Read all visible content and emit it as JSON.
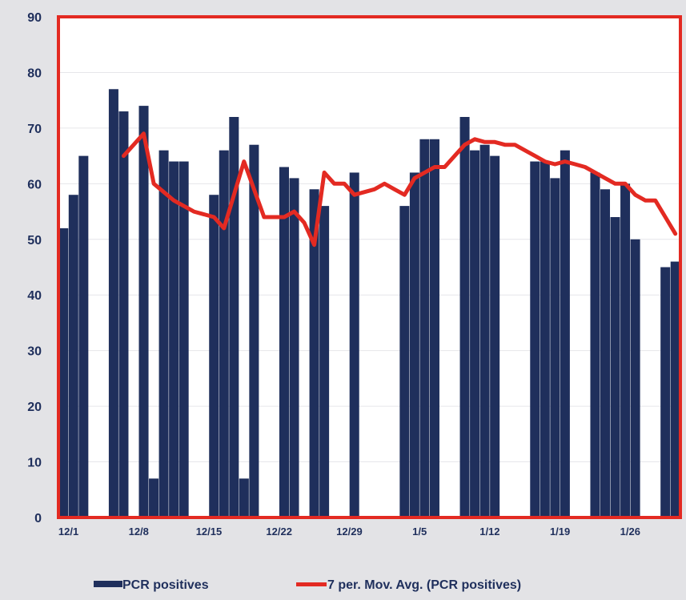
{
  "chart_data": {
    "type": "bar",
    "title": "",
    "xlabel": "",
    "ylabel": "",
    "ylim": [
      0,
      90
    ],
    "yticks": [
      0,
      10,
      20,
      30,
      40,
      50,
      60,
      70,
      80,
      90
    ],
    "grid": true,
    "legend_position": "bottom",
    "x_start": "12/1",
    "x_end": "1/31",
    "xticks": [
      "12/1",
      "12/8",
      "12/15",
      "12/22",
      "12/29",
      "1/5",
      "1/12",
      "1/19",
      "1/26"
    ],
    "bars": {
      "name": "PCR positives",
      "color": "#1f2f5c",
      "dates": [
        "12/1",
        "12/2",
        "12/3",
        "12/6",
        "12/7",
        "12/9",
        "12/10",
        "12/11",
        "12/12",
        "12/13",
        "12/16",
        "12/17",
        "12/18",
        "12/19",
        "12/20",
        "12/23",
        "12/24",
        "12/26",
        "12/27",
        "12/30",
        "1/4",
        "1/5",
        "1/6",
        "1/7",
        "1/10",
        "1/11",
        "1/12",
        "1/13",
        "1/17",
        "1/18",
        "1/19",
        "1/20",
        "1/23",
        "1/24",
        "1/25",
        "1/26",
        "1/27",
        "1/30",
        "1/31"
      ],
      "values": [
        52,
        58,
        65,
        77,
        73,
        74,
        7,
        66,
        64,
        64,
        58,
        66,
        72,
        7,
        67,
        63,
        61,
        59,
        56,
        62,
        56,
        62,
        68,
        68,
        72,
        66,
        67,
        65,
        64,
        64,
        61,
        66,
        62,
        59,
        54,
        60,
        50,
        45,
        46
      ]
    },
    "line": {
      "name": "7 per. Mov. Avg. (PCR positives)",
      "color": "#e32a22",
      "dates": [
        "12/7",
        "12/9",
        "12/10",
        "12/12",
        "12/14",
        "12/16",
        "12/17",
        "12/18",
        "12/19",
        "12/21",
        "12/23",
        "12/24",
        "12/25",
        "12/26",
        "12/27",
        "12/28",
        "12/29",
        "12/30",
        "1/1",
        "1/2",
        "1/3",
        "1/4",
        "1/5",
        "1/7",
        "1/8",
        "1/9",
        "1/10",
        "1/11",
        "1/12",
        "1/13",
        "1/14",
        "1/15",
        "1/16",
        "1/17",
        "1/18",
        "1/19",
        "1/20",
        "1/21",
        "1/22",
        "1/23",
        "1/24",
        "1/25",
        "1/26",
        "1/27",
        "1/28",
        "1/29",
        "1/30",
        "1/31"
      ],
      "values": [
        65,
        69,
        60,
        57,
        55,
        54,
        52,
        58,
        64,
        54,
        54,
        55,
        53,
        49,
        62,
        60,
        60,
        58,
        59,
        60,
        59,
        58,
        61,
        63,
        63,
        65,
        67,
        68,
        67.5,
        67.5,
        67,
        67,
        66,
        65,
        64,
        63.5,
        64,
        63.5,
        63,
        62,
        61,
        60,
        60,
        58,
        57,
        57,
        54,
        51
      ]
    }
  }
}
